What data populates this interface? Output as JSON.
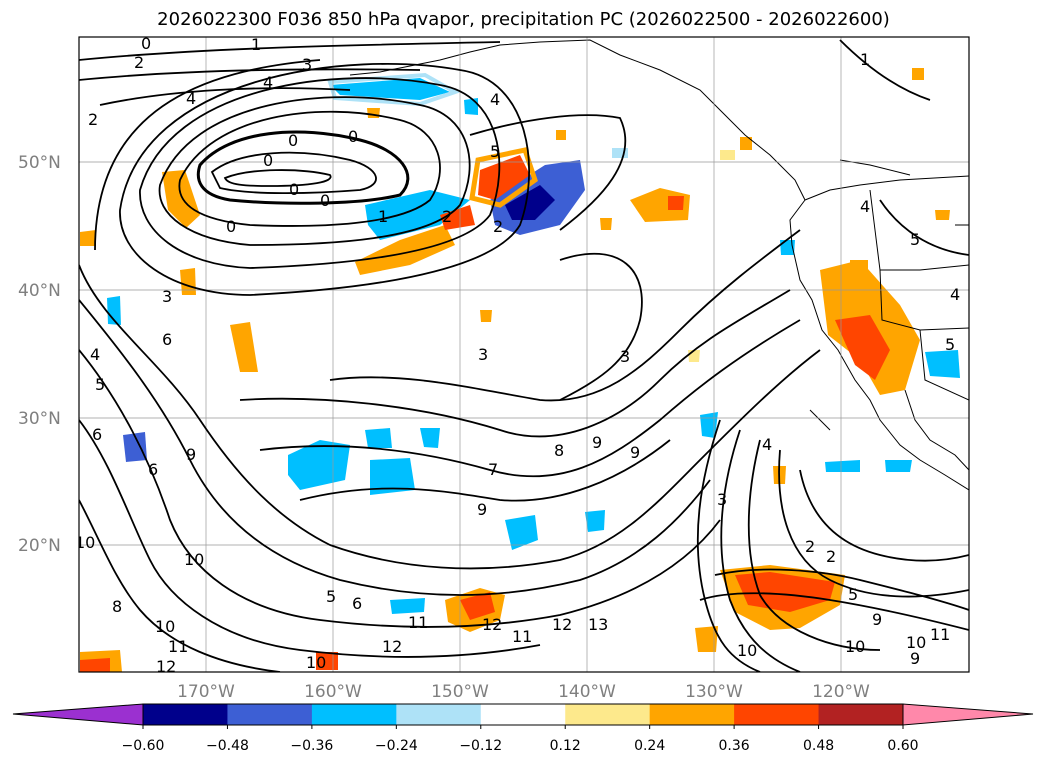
{
  "title": "2026022300 F036 850 hPa qvapor, precipitation PC (2026022500 - 2026022600)",
  "map": {
    "lat_labels": [
      "50°N",
      "40°N",
      "30°N",
      "20°N"
    ],
    "lon_labels": [
      "170°W",
      "160°W",
      "150°W",
      "140°W",
      "130°W",
      "120°W"
    ]
  },
  "colorbar": {
    "tick_labels": [
      "−0.60",
      "−0.48",
      "−0.36",
      "−0.24",
      "−0.12",
      "0.12",
      "0.24",
      "0.36",
      "0.48",
      "0.60"
    ],
    "colors": [
      "#9b30d0",
      "#00008b",
      "#3d5fd4",
      "#00bfff",
      "#aee2f7",
      "#ffffff",
      "#fde98c",
      "#ffa500",
      "#ff4500",
      "#b22222",
      "#ff88aa"
    ]
  },
  "contour_labels": [
    "0",
    "1",
    "2",
    "3",
    "4",
    "5",
    "6",
    "7",
    "8",
    "9",
    "10",
    "11",
    "12",
    "13"
  ]
}
